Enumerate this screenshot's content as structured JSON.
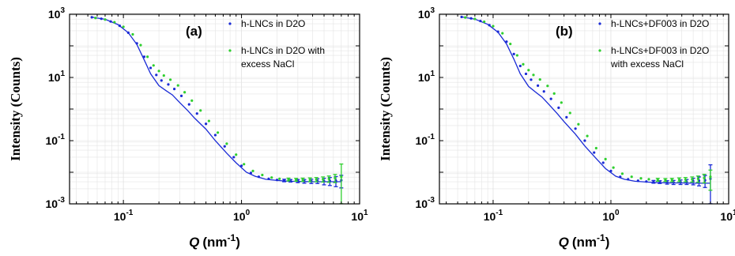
{
  "colors": {
    "series1": "#1a2bd6",
    "series2": "#2fcf2f",
    "fit": "#1a2bd6",
    "grid": "#e4e4e4"
  },
  "chart_data": [
    {
      "type": "scatter",
      "panel_label": "(a)",
      "xlabel_var": "Q",
      "xlabel_unit": "(nm",
      "xlabel_exp": "-1",
      "xlabel_close": ")",
      "ylabel": "Intensity (Counts)",
      "xscale": "log",
      "yscale": "log",
      "xlim": [
        0.035,
        10
      ],
      "ylim": [
        0.001,
        1000
      ],
      "x_ticks": [
        {
          "base": "10",
          "exp": "-1"
        },
        {
          "base": "10",
          "exp": "0"
        },
        {
          "base": "10",
          "exp": "1"
        }
      ],
      "y_ticks": [
        {
          "base": "10",
          "exp": "-3"
        },
        {
          "base": "10",
          "exp": "-1"
        },
        {
          "base": "10",
          "exp": "1"
        },
        {
          "base": "10",
          "exp": "3"
        }
      ],
      "grid": true,
      "legend_position": "top-right",
      "series": [
        {
          "name": "h-LNCs in D2O",
          "name_lines": [
            "h-LNCs in D2O"
          ],
          "color": "#1a2bd6",
          "x": [
            0.054,
            0.065,
            0.078,
            0.093,
            0.11,
            0.13,
            0.15,
            0.17,
            0.19,
            0.21,
            0.24,
            0.27,
            0.31,
            0.36,
            0.42,
            0.5,
            0.6,
            0.72,
            0.86,
            1.0,
            1.2,
            1.4,
            1.7,
            2.0,
            2.3,
            2.6,
            3.0,
            3.4,
            3.9,
            4.4,
            5.0,
            5.6,
            6.3,
            7.0
          ],
          "y": [
            800,
            720,
            590,
            430,
            260,
            120,
            45,
            20,
            12,
            8,
            6,
            4.3,
            2.6,
            1.4,
            0.72,
            0.34,
            0.15,
            0.066,
            0.03,
            0.016,
            0.0095,
            0.0072,
            0.0062,
            0.0057,
            0.0055,
            0.0054,
            0.0053,
            0.0052,
            0.0052,
            0.0053,
            0.0052,
            0.0053,
            0.0054,
            0.0056
          ],
          "err": [
            0,
            0,
            0,
            0,
            0,
            0,
            0,
            0,
            0,
            0,
            0,
            0,
            0,
            0,
            0,
            0,
            0,
            0,
            0,
            0,
            0,
            0,
            0,
            0,
            0.0005,
            0.0005,
            0.0006,
            0.0007,
            0.0008,
            0.0009,
            0.0012,
            0.0015,
            0.0019,
            0.0024
          ]
        },
        {
          "name": "h-LNCs in D2O with excess NaCl",
          "name_lines": [
            "h-LNCs in D2O with",
            "excess NaCl"
          ],
          "color": "#2fcf2f",
          "x": [
            0.058,
            0.07,
            0.084,
            0.1,
            0.12,
            0.14,
            0.16,
            0.18,
            0.2,
            0.22,
            0.25,
            0.29,
            0.33,
            0.38,
            0.45,
            0.53,
            0.63,
            0.75,
            0.9,
            1.05,
            1.25,
            1.5,
            1.8,
            2.1,
            2.5,
            2.9,
            3.3,
            3.8,
            4.3,
            4.9,
            5.5,
            6.2,
            7.0
          ],
          "y": [
            760,
            680,
            560,
            400,
            230,
            105,
            45,
            24,
            16,
            11.5,
            8.5,
            5.6,
            3.4,
            1.85,
            0.9,
            0.42,
            0.18,
            0.08,
            0.036,
            0.018,
            0.011,
            0.0082,
            0.0068,
            0.0062,
            0.0059,
            0.0058,
            0.0058,
            0.0058,
            0.0059,
            0.006,
            0.0062,
            0.0066,
            0.0072
          ],
          "err": [
            0,
            0,
            0,
            0,
            0,
            0,
            0,
            0,
            0,
            0,
            0,
            0,
            0,
            0,
            0,
            0,
            0,
            0,
            0,
            0,
            0,
            0,
            0,
            0,
            0.0006,
            0.0006,
            0.0007,
            0.0008,
            0.0009,
            0.0011,
            0.0014,
            0.0019,
            0.011
          ]
        }
      ],
      "fit_line": {
        "x": [
          0.054,
          0.07,
          0.09,
          0.11,
          0.13,
          0.15,
          0.17,
          0.2,
          0.23,
          0.26,
          0.3,
          0.35,
          0.4,
          0.5,
          0.6,
          0.75,
          0.9,
          1.1,
          1.3,
          1.6,
          2.0,
          2.5,
          3.2,
          4.0,
          5.0,
          6.0,
          7.0
        ],
        "y": [
          810,
          690,
          470,
          260,
          110,
          36,
          13,
          5.5,
          3.8,
          2.8,
          1.6,
          0.9,
          0.52,
          0.23,
          0.1,
          0.04,
          0.02,
          0.01,
          0.0075,
          0.006,
          0.0055,
          0.0052,
          0.0051,
          0.005,
          0.005,
          0.005,
          0.005
        ]
      }
    },
    {
      "type": "scatter",
      "panel_label": "(b)",
      "xlabel_var": "Q",
      "xlabel_unit": "(nm",
      "xlabel_exp": "-1",
      "xlabel_close": ")",
      "ylabel": "Intensity (Counts)",
      "xscale": "log",
      "yscale": "log",
      "xlim": [
        0.035,
        10
      ],
      "ylim": [
        0.001,
        1000
      ],
      "x_ticks": [
        {
          "base": "10",
          "exp": "-1"
        },
        {
          "base": "10",
          "exp": "0"
        },
        {
          "base": "10",
          "exp": "1"
        }
      ],
      "y_ticks": [
        {
          "base": "10",
          "exp": "-3"
        },
        {
          "base": "10",
          "exp": "-1"
        },
        {
          "base": "10",
          "exp": "1"
        },
        {
          "base": "10",
          "exp": "3"
        }
      ],
      "grid": true,
      "legend_position": "top-right",
      "series": [
        {
          "name": "h-LNCs+DF003 in D2O",
          "name_lines": [
            "h-LNCs+DF003 in D2O"
          ],
          "color": "#1a2bd6",
          "x": [
            0.054,
            0.065,
            0.078,
            0.093,
            0.11,
            0.13,
            0.15,
            0.17,
            0.19,
            0.21,
            0.24,
            0.27,
            0.31,
            0.36,
            0.42,
            0.5,
            0.6,
            0.72,
            0.86,
            1.0,
            1.2,
            1.4,
            1.7,
            2.0,
            2.3,
            2.6,
            3.0,
            3.4,
            3.9,
            4.4,
            5.0,
            5.6,
            6.3,
            7.0
          ],
          "y": [
            820,
            740,
            610,
            450,
            280,
            135,
            55,
            23,
            13,
            8.5,
            5.5,
            3.6,
            2.1,
            1.1,
            0.55,
            0.24,
            0.1,
            0.042,
            0.02,
            0.011,
            0.0072,
            0.006,
            0.0054,
            0.0051,
            0.005,
            0.0049,
            0.0048,
            0.0048,
            0.0049,
            0.005,
            0.0052,
            0.0054,
            0.0056,
            0.0062
          ],
          "err": [
            0,
            0,
            0,
            0,
            0,
            0,
            0,
            0,
            0,
            0,
            0,
            0,
            0,
            0,
            0,
            0,
            0,
            0,
            0,
            0,
            0,
            0,
            0,
            0,
            0.0005,
            0.0005,
            0.0006,
            0.0007,
            0.0008,
            0.0009,
            0.0012,
            0.0017,
            0.0023,
            0.011
          ]
        },
        {
          "name": "h-LNCs+DF003 in D2O with excess NaCl",
          "name_lines": [
            "h-LNCs+DF003 in D2O",
            "with excess NaCl"
          ],
          "color": "#2fcf2f",
          "x": [
            0.058,
            0.07,
            0.084,
            0.1,
            0.12,
            0.14,
            0.16,
            0.18,
            0.2,
            0.22,
            0.25,
            0.29,
            0.33,
            0.38,
            0.45,
            0.53,
            0.63,
            0.75,
            0.9,
            1.05,
            1.25,
            1.5,
            1.8,
            2.1,
            2.5,
            2.9,
            3.3,
            3.8,
            4.3,
            4.9,
            5.5,
            6.2,
            7.0
          ],
          "y": [
            790,
            710,
            580,
            420,
            250,
            115,
            50,
            26,
            17,
            12,
            8.6,
            5.4,
            3.1,
            1.6,
            0.75,
            0.33,
            0.14,
            0.058,
            0.026,
            0.014,
            0.009,
            0.0072,
            0.0064,
            0.006,
            0.0058,
            0.0057,
            0.0057,
            0.0058,
            0.0059,
            0.006,
            0.0062,
            0.0066,
            0.0072
          ],
          "err": [
            0,
            0,
            0,
            0,
            0,
            0,
            0,
            0,
            0,
            0,
            0,
            0,
            0,
            0,
            0,
            0,
            0,
            0,
            0,
            0,
            0,
            0,
            0,
            0,
            0.0006,
            0.0006,
            0.0007,
            0.0008,
            0.0009,
            0.0011,
            0.0014,
            0.002,
            0.0045
          ]
        }
      ],
      "fit_line": {
        "x": [
          0.054,
          0.07,
          0.09,
          0.11,
          0.13,
          0.15,
          0.17,
          0.2,
          0.23,
          0.26,
          0.3,
          0.35,
          0.4,
          0.5,
          0.6,
          0.75,
          0.9,
          1.1,
          1.3,
          1.6,
          2.0,
          2.5,
          3.2,
          4.0,
          5.0,
          6.0,
          7.0
        ],
        "y": [
          820,
          700,
          480,
          270,
          115,
          38,
          13,
          5.2,
          3.4,
          2.4,
          1.35,
          0.72,
          0.4,
          0.16,
          0.068,
          0.027,
          0.013,
          0.0075,
          0.006,
          0.0052,
          0.0049,
          0.0047,
          0.0046,
          0.0046,
          0.0045,
          0.0045,
          0.0045
        ]
      }
    }
  ]
}
